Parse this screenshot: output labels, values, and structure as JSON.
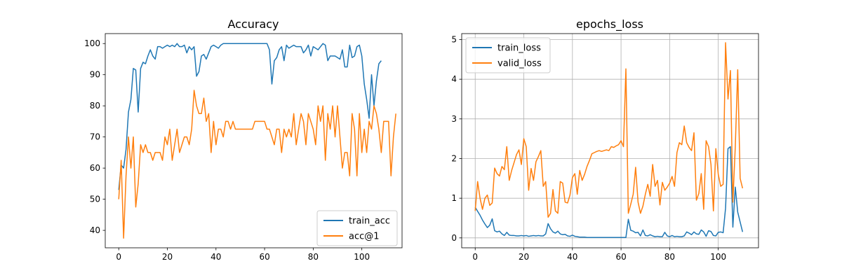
{
  "chart_data": [
    {
      "type": "line",
      "title": "Accuracy",
      "xlabel": "",
      "ylabel": "",
      "xlim": [
        -5.55,
        116.55
      ],
      "ylim": [
        34.4,
        103.2
      ],
      "xticks": [
        0,
        20,
        40,
        60,
        80,
        100
      ],
      "yticks": [
        40,
        50,
        60,
        70,
        80,
        90,
        100
      ],
      "grid": false,
      "legend_position": "lower-right",
      "series": [
        {
          "name": "train_acc",
          "color": "#1f77b4",
          "values": [
            53,
            61,
            60,
            66,
            78,
            82,
            92,
            91.5,
            78,
            92,
            94,
            93.5,
            96,
            98,
            96,
            95,
            99,
            99,
            98.5,
            99,
            99.5,
            99,
            99.5,
            99,
            100,
            99,
            99,
            99.5,
            97,
            99,
            98,
            99,
            89.5,
            91,
            96,
            96.5,
            95,
            97,
            99,
            99.5,
            99,
            98.5,
            99.5,
            100,
            100,
            100,
            100,
            100,
            100,
            100,
            100,
            100,
            100,
            100,
            100,
            100,
            100,
            100,
            100,
            100,
            100,
            100,
            98,
            87,
            94.5,
            95.5,
            98,
            99,
            94.5,
            99.5,
            98.5,
            99,
            99.5,
            99,
            99,
            99,
            97,
            98,
            99.5,
            96,
            99,
            98.5,
            98,
            99,
            100,
            99.5,
            94.5,
            96,
            96,
            96,
            95.5,
            95,
            98,
            92.5,
            92.5,
            99.5,
            95.5,
            96,
            99,
            99.5,
            96,
            87,
            82,
            76,
            90,
            80,
            88,
            93.5,
            94.5
          ]
        },
        {
          "name": "acc@1",
          "color": "#ff7f0e",
          "values": [
            50,
            62.5,
            37.5,
            57.5,
            70,
            60,
            70,
            47.5,
            55,
            67.5,
            65,
            67.5,
            65,
            65,
            62.5,
            65,
            65,
            65,
            62.5,
            70,
            67.5,
            72.5,
            62.5,
            67.5,
            72.5,
            65,
            67.5,
            70,
            70,
            67.5,
            72.5,
            85,
            80,
            77.5,
            77.5,
            82.5,
            75,
            77.5,
            65,
            75,
            67.5,
            72.5,
            72.5,
            70,
            75,
            75,
            72.5,
            75,
            72.5,
            72.5,
            72.5,
            72.5,
            72.5,
            72.5,
            72.5,
            72.5,
            75,
            75,
            75,
            75,
            75,
            72.5,
            72.5,
            70,
            67.5,
            72.5,
            72.5,
            65,
            72.5,
            70,
            72.5,
            70,
            77.5,
            67.5,
            72.5,
            77.5,
            75,
            67.5,
            77.5,
            75,
            72.5,
            67.5,
            80,
            75,
            80,
            62.5,
            77.5,
            72.5,
            80,
            70,
            80,
            70,
            60,
            65,
            65,
            57.5,
            77.5,
            72.5,
            57.5,
            77.5,
            65,
            72.5,
            65,
            75,
            72.5,
            80,
            77.5,
            72.5,
            65,
            75,
            75,
            75,
            57.5,
            70,
            77.5
          ]
        }
      ]
    },
    {
      "type": "line",
      "title": "epochs_loss",
      "xlabel": "",
      "ylabel": "",
      "xlim": [
        -5.55,
        116.55
      ],
      "ylim": [
        -0.25,
        5.15
      ],
      "xticks": [
        0,
        20,
        40,
        60,
        80,
        100
      ],
      "yticks": [
        0,
        1,
        2,
        3,
        4,
        5
      ],
      "grid": true,
      "legend_position": "upper-left",
      "series": [
        {
          "name": "train_loss",
          "color": "#1f77b4",
          "values": [
            0.77,
            0.67,
            0.57,
            0.45,
            0.35,
            0.26,
            0.32,
            0.48,
            0.18,
            0.15,
            0.17,
            0.1,
            0.06,
            0.14,
            0.07,
            0.06,
            0.06,
            0.05,
            0.05,
            0.06,
            0.05,
            0.06,
            0.04,
            0.05,
            0.06,
            0.05,
            0.06,
            0.05,
            0.05,
            0.1,
            0.36,
            0.23,
            0.15,
            0.12,
            0.17,
            0.1,
            0.08,
            0.09,
            0.05,
            0.04,
            0.07,
            0.04,
            0.03,
            0.02,
            0.02,
            0.02,
            0.01,
            0.01,
            0.01,
            0.01,
            0.01,
            0.01,
            0.01,
            0.01,
            0.01,
            0.01,
            0.01,
            0.01,
            0.01,
            0.01,
            0.01,
            0.01,
            0.01,
            0.47,
            0.19,
            0.17,
            0.13,
            0.14,
            0.05,
            0.2,
            0.06,
            0.05,
            0.08,
            0.05,
            0.03,
            0.04,
            0.03,
            0.03,
            0.14,
            0.05,
            0.03,
            0.06,
            0.03,
            0.04,
            0.03,
            0.03,
            0.05,
            0.15,
            0.12,
            0.08,
            0.15,
            0.1,
            0.09,
            0.2,
            0.15,
            0.04,
            0.18,
            0.16,
            0.06,
            0.05,
            0.14,
            0.15,
            0.13,
            0.75,
            2.25,
            2.3,
            0.27,
            1.28,
            0.65,
            0.4,
            0.15
          ]
        },
        {
          "name": "valid_loss",
          "color": "#ff7f0e",
          "values": [
            0.68,
            1.42,
            1,
            0.72,
            1,
            1.08,
            0.82,
            0.88,
            1.76,
            1.62,
            1.56,
            1.8,
            1.72,
            2.3,
            1.45,
            1.7,
            1.9,
            2.1,
            2.22,
            1.85,
            2.5,
            2.3,
            1.2,
            1.75,
            1.45,
            1.92,
            2.05,
            2.2,
            1.3,
            1.42,
            0.52,
            0.62,
            1.22,
            0.68,
            0.62,
            1.42,
            1.38,
            0.9,
            0.88,
            1.08,
            1.52,
            1.62,
            1.1,
            1.7,
            1.45,
            1.6,
            1.8,
            1.95,
            2.12,
            2.15,
            2.18,
            2.2,
            2.18,
            2.2,
            2.22,
            2.2,
            2.3,
            2.28,
            2.32,
            2.35,
            2.45,
            2.3,
            4.26,
            0.62,
            0.85,
            1.1,
            1.78,
            0.9,
            0.62,
            0.8,
            1.1,
            1.35,
            1.05,
            1.85,
            1.3,
            1.45,
            0.83,
            1.4,
            1.2,
            1.28,
            1.38,
            1.55,
            1.3,
            2.15,
            2.4,
            2.35,
            2.82,
            2.4,
            2.28,
            2.2,
            2.65,
            0.95,
            1.12,
            1.62,
            0.72,
            2.45,
            2.3,
            1.85,
            0.68,
            2.25,
            1.6,
            1.3,
            1.35,
            4.92,
            3.5,
            4.22,
            0.9,
            2.3,
            4.24,
            1.5,
            1.25
          ]
        }
      ]
    }
  ]
}
